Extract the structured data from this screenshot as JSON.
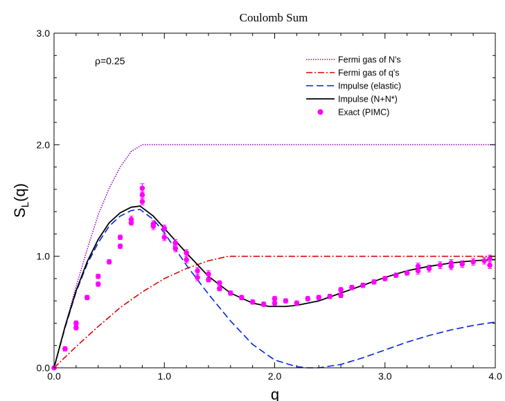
{
  "chart_data": {
    "type": "line",
    "title": "Coulomb Sum",
    "xlabel": "q",
    "ylabel_main": "S",
    "ylabel_sub": "L",
    "ylabel_tail": "(q)",
    "xlim": [
      0,
      4
    ],
    "ylim": [
      0,
      3
    ],
    "xticks": [
      0,
      1,
      2,
      3,
      4
    ],
    "xtick_labels": [
      "0.0",
      "1.0",
      "2.0",
      "3.0",
      "4.0"
    ],
    "yticks": [
      0,
      1,
      2,
      3
    ],
    "ytick_labels": [
      "0.0",
      "1.0",
      "2.0",
      "3.0"
    ],
    "annotation": "ρ=0.25",
    "legend_position": "top-right",
    "series": [
      {
        "name": "Fermi gas of N's",
        "style": "dotted",
        "color": "#9900cc",
        "x": [
          0,
          0.1,
          0.2,
          0.3,
          0.4,
          0.5,
          0.6,
          0.7,
          0.8,
          1.0,
          1.5,
          2.0,
          2.5,
          3.0,
          3.5,
          4.0
        ],
        "y": [
          0,
          0.37,
          0.73,
          1.06,
          1.37,
          1.61,
          1.8,
          1.94,
          2.0,
          2.0,
          2.0,
          2.0,
          2.0,
          2.0,
          2.0,
          2.0
        ]
      },
      {
        "name": "Fermi gas of q's",
        "style": "dashdot",
        "color": "#dd0000",
        "x": [
          0,
          0.2,
          0.4,
          0.6,
          0.8,
          1.0,
          1.2,
          1.4,
          1.58,
          2.0,
          2.5,
          3.0,
          3.5,
          4.0
        ],
        "y": [
          0,
          0.19,
          0.37,
          0.54,
          0.68,
          0.8,
          0.89,
          0.96,
          1.0,
          1.0,
          1.0,
          1.0,
          1.0,
          1.0
        ]
      },
      {
        "name": "Impulse (elastic)",
        "style": "dashed",
        "color": "#0022dd",
        "x": [
          0,
          0.1,
          0.2,
          0.3,
          0.4,
          0.5,
          0.6,
          0.7,
          0.78,
          0.9,
          1.0,
          1.2,
          1.4,
          1.6,
          1.8,
          2.0,
          2.2,
          2.3,
          2.4,
          2.6,
          2.8,
          3.0,
          3.2,
          3.4,
          3.6,
          3.8,
          4.0
        ],
        "y": [
          0,
          0.36,
          0.68,
          0.93,
          1.12,
          1.27,
          1.36,
          1.41,
          1.42,
          1.33,
          1.21,
          0.92,
          0.66,
          0.42,
          0.21,
          0.07,
          0.01,
          0.0,
          0.0,
          0.03,
          0.09,
          0.16,
          0.23,
          0.29,
          0.34,
          0.38,
          0.41
        ]
      },
      {
        "name": "Impulse (N+N*)",
        "style": "solid",
        "color": "#000000",
        "x": [
          0,
          0.1,
          0.2,
          0.3,
          0.4,
          0.5,
          0.6,
          0.7,
          0.78,
          0.9,
          1.0,
          1.2,
          1.4,
          1.6,
          1.8,
          1.95,
          2.1,
          2.2,
          2.4,
          2.6,
          2.8,
          3.0,
          3.2,
          3.4,
          3.6,
          3.8,
          4.0
        ],
        "y": [
          0,
          0.37,
          0.69,
          0.95,
          1.15,
          1.3,
          1.39,
          1.44,
          1.45,
          1.36,
          1.25,
          1.03,
          0.82,
          0.67,
          0.58,
          0.55,
          0.55,
          0.56,
          0.6,
          0.67,
          0.74,
          0.81,
          0.87,
          0.91,
          0.94,
          0.96,
          0.97
        ]
      }
    ],
    "points": {
      "name": "Exact (PIMC)",
      "color": "#ff00ff",
      "x": [
        0.0,
        0.1,
        0.2,
        0.2,
        0.3,
        0.4,
        0.4,
        0.5,
        0.6,
        0.6,
        0.7,
        0.7,
        0.8,
        0.8,
        0.8,
        0.9,
        0.9,
        1.0,
        1.0,
        1.1,
        1.1,
        1.2,
        1.2,
        1.3,
        1.3,
        1.4,
        1.4,
        1.5,
        1.5,
        1.6,
        1.7,
        1.8,
        1.9,
        2.0,
        2.0,
        2.1,
        2.2,
        2.3,
        2.4,
        2.5,
        2.6,
        2.6,
        2.7,
        2.8,
        2.9,
        3.0,
        3.1,
        3.2,
        3.3,
        3.3,
        3.4,
        3.5,
        3.6,
        3.6,
        3.7,
        3.8,
        3.9,
        3.95,
        3.95
      ],
      "y": [
        0.0,
        0.17,
        0.4,
        0.36,
        0.63,
        0.82,
        0.75,
        0.95,
        1.17,
        1.09,
        1.33,
        1.3,
        1.61,
        1.55,
        1.49,
        1.29,
        1.27,
        1.25,
        1.17,
        1.12,
        1.07,
        1.03,
        0.97,
        0.87,
        0.81,
        0.84,
        0.79,
        0.76,
        0.71,
        0.67,
        0.63,
        0.59,
        0.57,
        0.58,
        0.62,
        0.6,
        0.58,
        0.62,
        0.63,
        0.64,
        0.7,
        0.65,
        0.72,
        0.74,
        0.77,
        0.8,
        0.83,
        0.85,
        0.87,
        0.91,
        0.89,
        0.92,
        0.94,
        0.91,
        0.93,
        0.95,
        0.96,
        0.98,
        0.92
      ],
      "err": [
        0.0,
        0.02,
        0.02,
        0.02,
        0.02,
        0.02,
        0.02,
        0.02,
        0.02,
        0.02,
        0.03,
        0.02,
        0.04,
        0.03,
        0.03,
        0.03,
        0.03,
        0.03,
        0.03,
        0.03,
        0.03,
        0.03,
        0.03,
        0.03,
        0.03,
        0.03,
        0.02,
        0.02,
        0.02,
        0.02,
        0.02,
        0.02,
        0.02,
        0.02,
        0.02,
        0.02,
        0.02,
        0.02,
        0.02,
        0.02,
        0.02,
        0.02,
        0.02,
        0.02,
        0.02,
        0.02,
        0.02,
        0.02,
        0.03,
        0.03,
        0.03,
        0.03,
        0.03,
        0.03,
        0.03,
        0.03,
        0.03,
        0.03,
        0.03
      ]
    }
  }
}
